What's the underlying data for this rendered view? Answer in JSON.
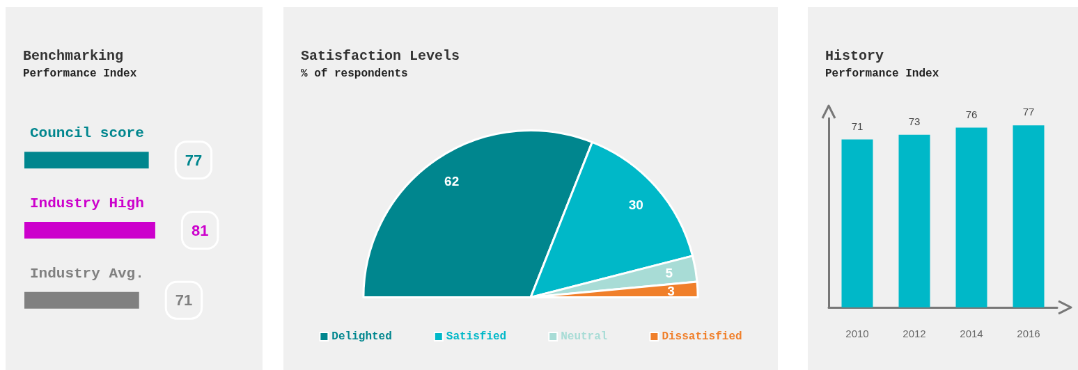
{
  "chart_data": [
    {
      "type": "bar",
      "orientation": "horizontal",
      "title": "Benchmarking",
      "subtitle": "Performance Index",
      "categories": [
        "Council score",
        "Industry High",
        "Industry Avg."
      ],
      "values": [
        77,
        81,
        71
      ],
      "colors": [
        "#00868e",
        "#cc00cc",
        "#808080"
      ],
      "data_labels": true
    },
    {
      "type": "pie",
      "title": "Satisfaction Levels",
      "subtitle": "% of respondents",
      "categories": [
        "Delighted",
        "Satisfied",
        "Neutral",
        "Dissatisfied"
      ],
      "values": [
        62,
        30,
        5,
        3
      ],
      "colors": [
        "#00868e",
        "#00b8c8",
        "#a8dcd6",
        "#f07f2a"
      ],
      "data_labels": true,
      "legend": "bottom"
    },
    {
      "type": "bar",
      "title": "History",
      "subtitle": "Performance Index",
      "categories": [
        "2010",
        "2012",
        "2014",
        "2016"
      ],
      "values": [
        71,
        73,
        76,
        77
      ],
      "color": "#00b8c8",
      "data_labels": true
    }
  ]
}
